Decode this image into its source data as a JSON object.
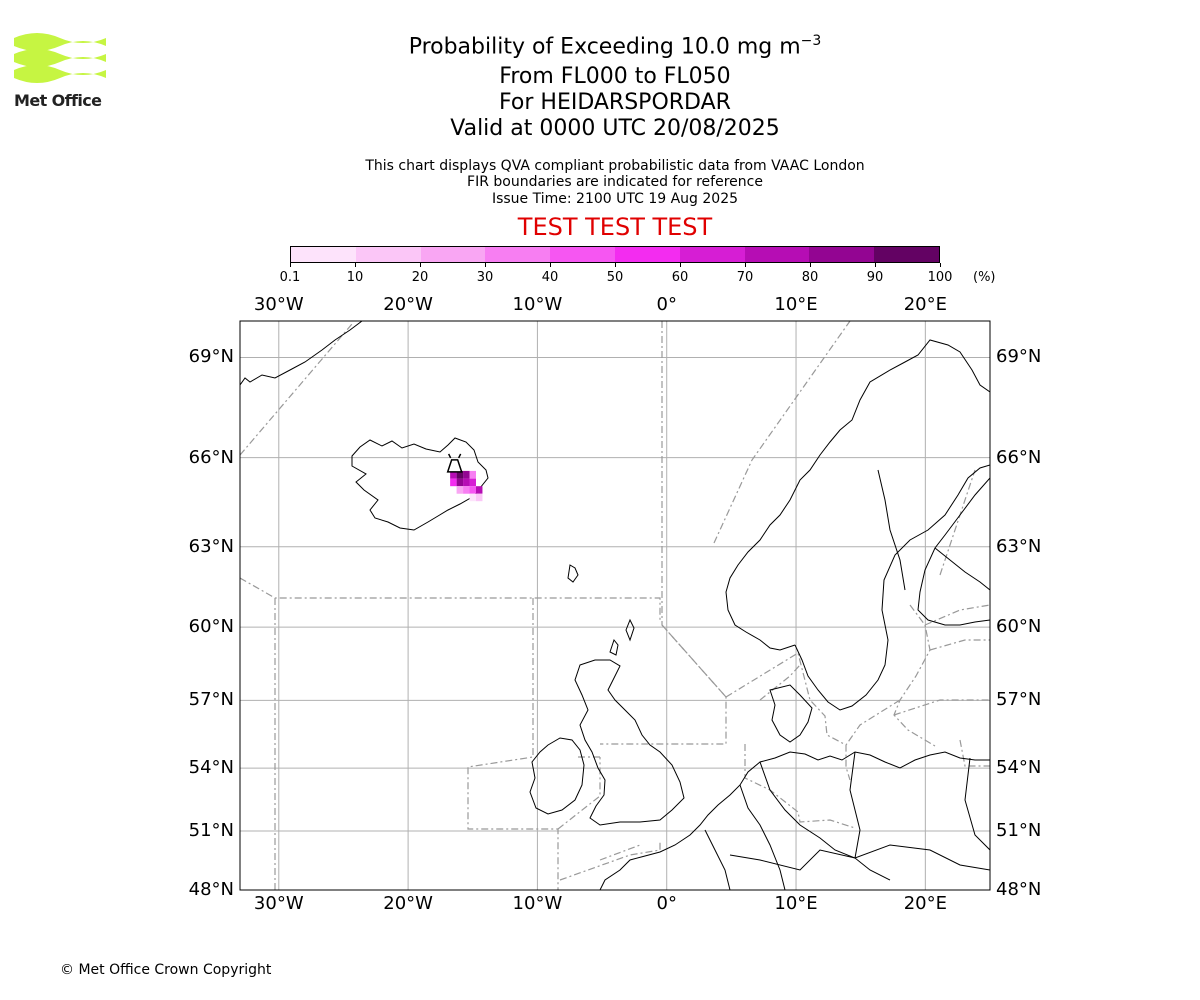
{
  "header": {
    "title_main": "Probability of Exceeding 10.0 mg m",
    "title_sup": "−3",
    "level_range": "From FL000 to FL050",
    "location": "For HEIDARSPORDAR",
    "valid_time": "Valid at 0000 UTC 20/08/2025",
    "info_line1": "This chart displays QVA compliant probabilistic data from VAAC London",
    "info_line2": "FIR boundaries are indicated for reference",
    "issue_time": "Issue Time: 2100 UTC 19 Aug 2025",
    "test_banner": "TEST TEST TEST"
  },
  "logo": {
    "text": "Met Office",
    "color": "#c6f542"
  },
  "colorbar": {
    "unit": "(%)",
    "ticks": [
      "0.1",
      "10",
      "20",
      "30",
      "40",
      "50",
      "60",
      "70",
      "80",
      "90",
      "100"
    ],
    "colors": [
      "#fde3fb",
      "#fbc6f7",
      "#f9a6f3",
      "#f77ef2",
      "#f656f2",
      "#f32cf0",
      "#d61ed4",
      "#b60db4",
      "#930592",
      "#630263"
    ]
  },
  "map": {
    "lon_range": [
      -33,
      25
    ],
    "lat_range": [
      48,
      70
    ],
    "lon_ticks": [
      {
        "value": -30,
        "label": "30°W"
      },
      {
        "value": -20,
        "label": "20°W"
      },
      {
        "value": -10,
        "label": "10°W"
      },
      {
        "value": 0,
        "label": "0°"
      },
      {
        "value": 10,
        "label": "10°E"
      },
      {
        "value": 20,
        "label": "20°E"
      }
    ],
    "lat_ticks": [
      {
        "value": 69,
        "label": "69°N"
      },
      {
        "value": 66,
        "label": "66°N"
      },
      {
        "value": 63,
        "label": "63°N"
      },
      {
        "value": 60,
        "label": "60°N"
      },
      {
        "value": 57,
        "label": "57°N"
      },
      {
        "value": 54,
        "label": "54°N"
      },
      {
        "value": 51,
        "label": "51°N"
      },
      {
        "value": 48,
        "label": "48°N"
      }
    ],
    "volcano": {
      "name_icon": "volcano-icon",
      "lon": -16.4,
      "lat": 65.8
    },
    "probability_cells": [
      {
        "lon": -16.0,
        "lat": 65.45,
        "value": 95
      },
      {
        "lon": -15.5,
        "lat": 65.45,
        "value": 85
      },
      {
        "lon": -16.0,
        "lat": 65.2,
        "value": 80
      },
      {
        "lon": -15.5,
        "lat": 65.2,
        "value": 70
      },
      {
        "lon": -15.0,
        "lat": 65.2,
        "value": 60
      },
      {
        "lon": -16.5,
        "lat": 65.45,
        "value": 75
      },
      {
        "lon": -16.5,
        "lat": 65.2,
        "value": 55
      },
      {
        "lon": -15.0,
        "lat": 65.45,
        "value": 30
      },
      {
        "lon": -14.5,
        "lat": 64.95,
        "value": 70
      },
      {
        "lon": -15.0,
        "lat": 64.95,
        "value": 45
      },
      {
        "lon": -15.5,
        "lat": 64.95,
        "value": 35
      },
      {
        "lon": -16.0,
        "lat": 64.95,
        "value": 20
      },
      {
        "lon": -14.5,
        "lat": 64.7,
        "value": 10
      },
      {
        "lon": -15.0,
        "lat": 64.7,
        "value": 5
      }
    ]
  },
  "footer": {
    "copyright": "© Met Office Crown Copyright"
  }
}
